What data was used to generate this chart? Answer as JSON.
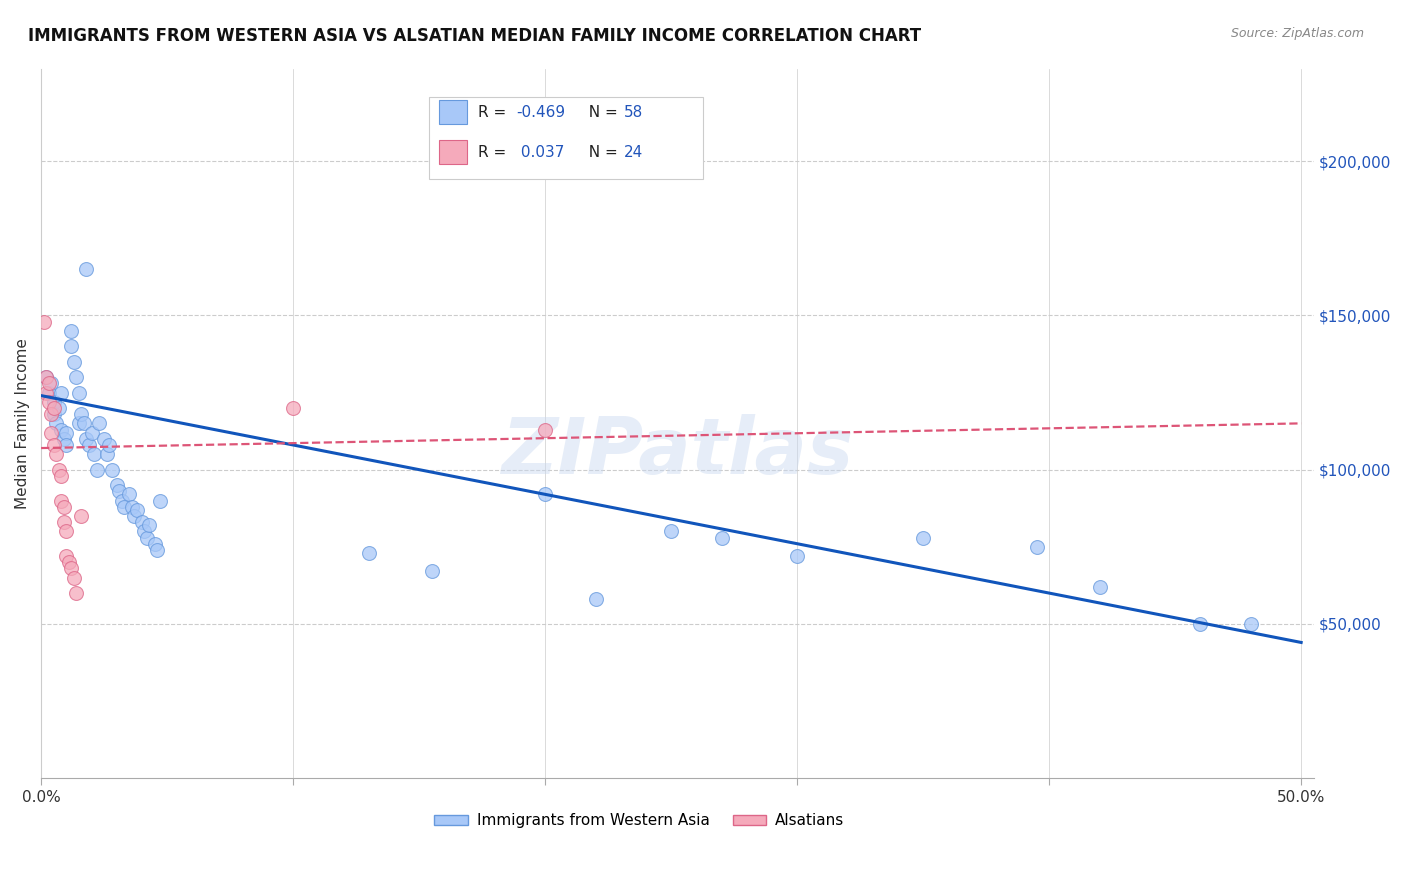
{
  "title": "IMMIGRANTS FROM WESTERN ASIA VS ALSATIAN MEDIAN FAMILY INCOME CORRELATION CHART",
  "source": "Source: ZipAtlas.com",
  "ylabel": "Median Family Income",
  "y_tick_labels": [
    "$200,000",
    "$150,000",
    "$100,000",
    "$50,000"
  ],
  "y_tick_values": [
    200000,
    150000,
    100000,
    50000
  ],
  "background_color": "#ffffff",
  "watermark": "ZIPatlas",
  "legend_label_blue": "Immigrants from Western Asia",
  "legend_label_pink": "Alsatians",
  "blue_scatter": [
    [
      0.002,
      130000
    ],
    [
      0.003,
      125000
    ],
    [
      0.004,
      128000
    ],
    [
      0.005,
      122000
    ],
    [
      0.005,
      118000
    ],
    [
      0.006,
      115000
    ],
    [
      0.007,
      120000
    ],
    [
      0.008,
      113000
    ],
    [
      0.008,
      125000
    ],
    [
      0.009,
      110000
    ],
    [
      0.01,
      112000
    ],
    [
      0.01,
      108000
    ],
    [
      0.012,
      145000
    ],
    [
      0.012,
      140000
    ],
    [
      0.013,
      135000
    ],
    [
      0.014,
      130000
    ],
    [
      0.015,
      125000
    ],
    [
      0.015,
      115000
    ],
    [
      0.016,
      118000
    ],
    [
      0.017,
      115000
    ],
    [
      0.018,
      165000
    ],
    [
      0.018,
      110000
    ],
    [
      0.019,
      108000
    ],
    [
      0.02,
      112000
    ],
    [
      0.021,
      105000
    ],
    [
      0.022,
      100000
    ],
    [
      0.023,
      115000
    ],
    [
      0.025,
      110000
    ],
    [
      0.026,
      105000
    ],
    [
      0.027,
      108000
    ],
    [
      0.028,
      100000
    ],
    [
      0.03,
      95000
    ],
    [
      0.031,
      93000
    ],
    [
      0.032,
      90000
    ],
    [
      0.033,
      88000
    ],
    [
      0.035,
      92000
    ],
    [
      0.036,
      88000
    ],
    [
      0.037,
      85000
    ],
    [
      0.038,
      87000
    ],
    [
      0.04,
      83000
    ],
    [
      0.041,
      80000
    ],
    [
      0.042,
      78000
    ],
    [
      0.043,
      82000
    ],
    [
      0.045,
      76000
    ],
    [
      0.046,
      74000
    ],
    [
      0.047,
      90000
    ],
    [
      0.13,
      73000
    ],
    [
      0.155,
      67000
    ],
    [
      0.2,
      92000
    ],
    [
      0.22,
      58000
    ],
    [
      0.25,
      80000
    ],
    [
      0.27,
      78000
    ],
    [
      0.3,
      72000
    ],
    [
      0.35,
      78000
    ],
    [
      0.395,
      75000
    ],
    [
      0.42,
      62000
    ],
    [
      0.46,
      50000
    ],
    [
      0.48,
      50000
    ]
  ],
  "pink_scatter": [
    [
      0.001,
      148000
    ],
    [
      0.002,
      130000
    ],
    [
      0.002,
      125000
    ],
    [
      0.003,
      128000
    ],
    [
      0.003,
      122000
    ],
    [
      0.004,
      118000
    ],
    [
      0.004,
      112000
    ],
    [
      0.005,
      120000
    ],
    [
      0.005,
      108000
    ],
    [
      0.006,
      105000
    ],
    [
      0.007,
      100000
    ],
    [
      0.008,
      98000
    ],
    [
      0.008,
      90000
    ],
    [
      0.009,
      88000
    ],
    [
      0.009,
      83000
    ],
    [
      0.01,
      80000
    ],
    [
      0.01,
      72000
    ],
    [
      0.011,
      70000
    ],
    [
      0.012,
      68000
    ],
    [
      0.013,
      65000
    ],
    [
      0.014,
      60000
    ],
    [
      0.016,
      85000
    ],
    [
      0.1,
      120000
    ],
    [
      0.2,
      113000
    ]
  ],
  "blue_line_x": [
    0.0,
    0.5
  ],
  "blue_line_y": [
    124000,
    44000
  ],
  "pink_line_x": [
    0.0,
    0.5
  ],
  "pink_line_y": [
    107000,
    115000
  ],
  "xlim": [
    0.0,
    0.505
  ],
  "ylim": [
    0,
    230000
  ],
  "grid_color": "#cccccc",
  "blue_color": "#a8c8f8",
  "blue_edge": "#6699dd",
  "pink_color": "#f5aabb",
  "pink_edge": "#dd6688",
  "trend_blue": "#1155bb",
  "trend_pink": "#dd5577",
  "marker_size": 100
}
